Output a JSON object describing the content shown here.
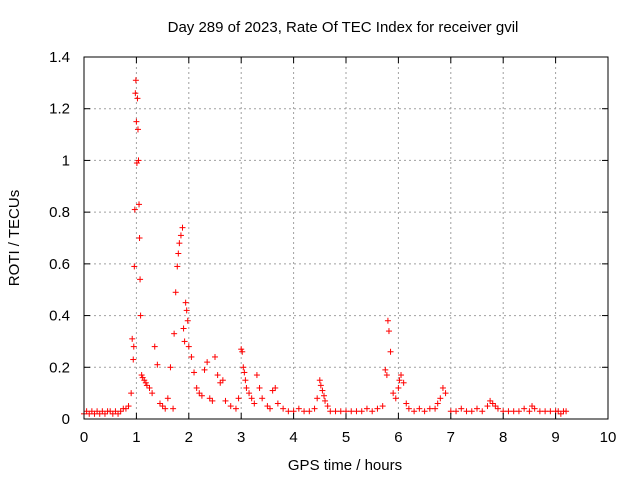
{
  "chart_data": {
    "type": "scatter",
    "title": "Day 289 of 2023, Rate Of TEC Index for receiver gvil",
    "xlabel": "GPS time / hours",
    "ylabel": "ROTI / TECUs",
    "xlim": [
      0,
      10
    ],
    "ylim": [
      0,
      1.4
    ],
    "xticks": [
      "0",
      "1",
      "2",
      "3",
      "4",
      "5",
      "6",
      "7",
      "8",
      "9",
      "10"
    ],
    "yticks": [
      "0",
      "0.2",
      "0.4",
      "0.6",
      "0.8",
      "1",
      "1.2",
      "1.4"
    ],
    "grid": true,
    "marker": "+",
    "color": "#ff0000",
    "series": [
      {
        "name": "ROTI",
        "x": [
          0.0,
          0.05,
          0.1,
          0.15,
          0.2,
          0.25,
          0.3,
          0.35,
          0.4,
          0.45,
          0.5,
          0.55,
          0.6,
          0.65,
          0.7,
          0.75,
          0.8,
          0.85,
          0.9,
          0.92,
          0.94,
          0.95,
          0.96,
          0.97,
          0.98,
          0.99,
          1.0,
          1.01,
          1.02,
          1.03,
          1.04,
          1.05,
          1.06,
          1.07,
          1.08,
          1.1,
          1.12,
          1.15,
          1.18,
          1.2,
          1.25,
          1.3,
          1.35,
          1.4,
          1.45,
          1.5,
          1.55,
          1.6,
          1.65,
          1.7,
          1.72,
          1.75,
          1.78,
          1.8,
          1.82,
          1.85,
          1.88,
          1.9,
          1.92,
          1.94,
          1.96,
          1.98,
          2.0,
          2.05,
          2.1,
          2.15,
          2.2,
          2.25,
          2.3,
          2.35,
          2.4,
          2.45,
          2.5,
          2.55,
          2.6,
          2.65,
          2.7,
          2.8,
          2.9,
          2.95,
          3.0,
          3.02,
          3.04,
          3.06,
          3.08,
          3.1,
          3.15,
          3.2,
          3.25,
          3.3,
          3.35,
          3.4,
          3.5,
          3.55,
          3.6,
          3.65,
          3.7,
          3.8,
          3.9,
          4.0,
          4.1,
          4.2,
          4.3,
          4.4,
          4.45,
          4.5,
          4.52,
          4.55,
          4.58,
          4.6,
          4.65,
          4.7,
          4.8,
          4.9,
          5.0,
          5.1,
          5.2,
          5.3,
          5.4,
          5.5,
          5.6,
          5.7,
          5.75,
          5.78,
          5.8,
          5.82,
          5.85,
          5.9,
          5.95,
          6.0,
          6.02,
          6.05,
          6.1,
          6.15,
          6.2,
          6.3,
          6.4,
          6.5,
          6.6,
          6.7,
          6.75,
          6.8,
          6.85,
          6.9,
          7.0,
          7.1,
          7.2,
          7.3,
          7.4,
          7.5,
          7.6,
          7.7,
          7.75,
          7.8,
          7.85,
          7.9,
          8.0,
          8.1,
          8.2,
          8.3,
          8.4,
          8.5,
          8.55,
          8.6,
          8.7,
          8.8,
          8.9,
          9.0,
          9.05,
          9.1,
          9.15,
          9.2
        ],
        "y": [
          0.02,
          0.03,
          0.02,
          0.03,
          0.02,
          0.03,
          0.02,
          0.03,
          0.02,
          0.03,
          0.03,
          0.02,
          0.03,
          0.02,
          0.03,
          0.04,
          0.04,
          0.05,
          0.1,
          0.31,
          0.23,
          0.28,
          0.59,
          0.81,
          1.26,
          1.31,
          1.15,
          0.99,
          1.24,
          1.12,
          1.0,
          0.83,
          0.7,
          0.54,
          0.4,
          0.17,
          0.16,
          0.15,
          0.14,
          0.13,
          0.12,
          0.1,
          0.28,
          0.21,
          0.06,
          0.05,
          0.04,
          0.08,
          0.2,
          0.04,
          0.33,
          0.49,
          0.59,
          0.64,
          0.68,
          0.71,
          0.74,
          0.35,
          0.3,
          0.45,
          0.42,
          0.38,
          0.28,
          0.24,
          0.18,
          0.12,
          0.1,
          0.09,
          0.19,
          0.22,
          0.08,
          0.07,
          0.24,
          0.17,
          0.14,
          0.15,
          0.07,
          0.05,
          0.04,
          0.08,
          0.27,
          0.26,
          0.2,
          0.18,
          0.15,
          0.12,
          0.1,
          0.08,
          0.06,
          0.17,
          0.12,
          0.08,
          0.05,
          0.04,
          0.11,
          0.12,
          0.06,
          0.04,
          0.03,
          0.03,
          0.04,
          0.03,
          0.03,
          0.04,
          0.08,
          0.15,
          0.13,
          0.11,
          0.09,
          0.07,
          0.05,
          0.03,
          0.03,
          0.03,
          0.03,
          0.03,
          0.03,
          0.03,
          0.04,
          0.03,
          0.04,
          0.05,
          0.19,
          0.17,
          0.38,
          0.34,
          0.26,
          0.1,
          0.08,
          0.12,
          0.15,
          0.17,
          0.14,
          0.06,
          0.04,
          0.03,
          0.04,
          0.03,
          0.04,
          0.04,
          0.06,
          0.08,
          0.12,
          0.1,
          0.03,
          0.03,
          0.04,
          0.03,
          0.03,
          0.04,
          0.03,
          0.05,
          0.07,
          0.06,
          0.05,
          0.04,
          0.03,
          0.03,
          0.03,
          0.03,
          0.04,
          0.03,
          0.05,
          0.04,
          0.03,
          0.03,
          0.03,
          0.03,
          0.03,
          0.02,
          0.03,
          0.03
        ]
      }
    ]
  }
}
